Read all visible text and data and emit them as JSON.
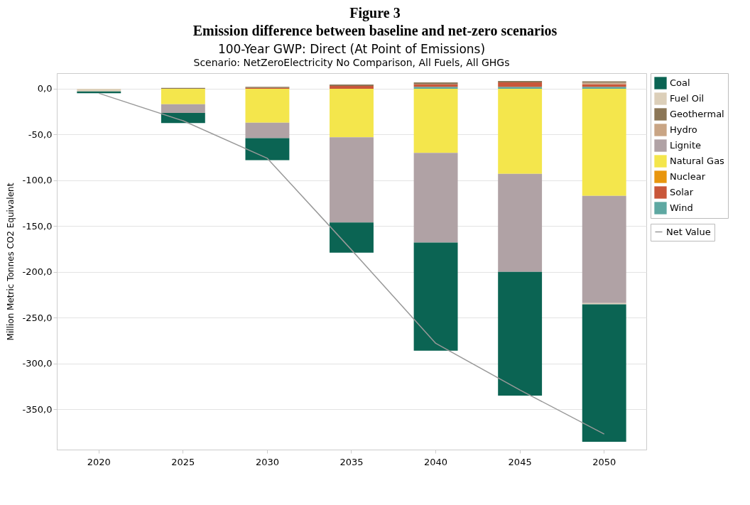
{
  "chart_data": {
    "type": "bar",
    "title": "Figure 3",
    "subtitle": "Emission difference between baseline and net-zero scenarios",
    "annotations": [
      "100-Year GWP: Direct (At Point of Emissions)",
      "Scenario: NetZeroElectricity No Comparison, All Fuels, All GHGs"
    ],
    "ylabel": "Million Metric Tonnes CO2 Equivalent",
    "categories": [
      "2020",
      "2025",
      "2030",
      "2035",
      "2040",
      "2045",
      "2050"
    ],
    "stacked": true,
    "series": [
      {
        "name": "Wind",
        "color": "#5ea8a2",
        "values": [
          null,
          null,
          null,
          null,
          2,
          2,
          2
        ]
      },
      {
        "name": "Solar",
        "color": "#c9573a",
        "values": [
          null,
          null,
          1,
          3,
          3,
          5,
          3
        ]
      },
      {
        "name": "Nuclear",
        "color": "#e8960e",
        "values": [
          null,
          null,
          null,
          null,
          null,
          null,
          null
        ]
      },
      {
        "name": "Natural Gas",
        "color": "#f4e64c",
        "values": [
          null,
          -17,
          -37,
          -53,
          -70,
          -93,
          -117
        ]
      },
      {
        "name": "Lignite",
        "color": "#b0a2a5",
        "values": [
          null,
          -9.5,
          -17,
          -93,
          -98,
          -107,
          -117
        ]
      },
      {
        "name": "Hydro",
        "color": "#c9a585",
        "values": [
          null,
          null,
          null,
          null,
          null,
          null,
          1.5
        ]
      },
      {
        "name": "Geothermal",
        "color": "#8b7656",
        "values": [
          null,
          1,
          1,
          1.5,
          2,
          1.5,
          1.5
        ]
      },
      {
        "name": "Fuel Oil",
        "color": "#dccfb9",
        "values": [
          -3,
          null,
          null,
          null,
          null,
          null,
          -1.5
        ]
      },
      {
        "name": "Coal",
        "color": "#0b6453",
        "values": [
          -2,
          -11,
          -24,
          -33,
          -118,
          -135,
          -150
        ]
      },
      {
        "name": "Net Value",
        "type": "line",
        "color": "#999999",
        "values": [
          -5,
          -35,
          -76,
          -176,
          -278,
          -329,
          -377
        ]
      }
    ],
    "ylim": [
      -394,
      17
    ],
    "yticks": [
      {
        "value": 0,
        "label": "0,0"
      },
      {
        "value": -50,
        "label": "-50,0"
      },
      {
        "value": -100,
        "label": "-100,0"
      },
      {
        "value": -150,
        "label": "-150,0"
      },
      {
        "value": -200,
        "label": "-200,0"
      },
      {
        "value": -250,
        "label": "-250,0"
      },
      {
        "value": -300,
        "label": "-300,0"
      },
      {
        "value": -350,
        "label": "-350,0"
      }
    ],
    "grid": "y",
    "legend": "right",
    "marker": "none"
  }
}
